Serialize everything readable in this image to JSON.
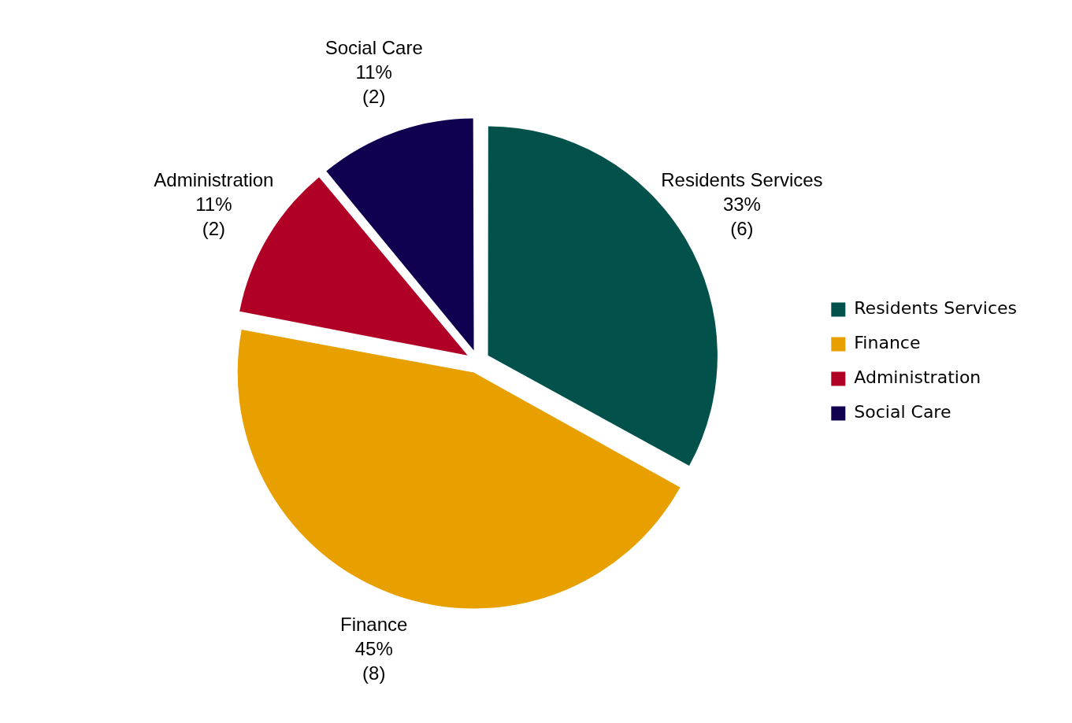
{
  "chart_data": {
    "type": "pie",
    "categories": [
      "Residents Services",
      "Finance",
      "Administration",
      "Social Care"
    ],
    "values": [
      33,
      45,
      11,
      11
    ],
    "value_labels": [
      "33%\n(6)",
      "45%\n(8)",
      "11%\n(2)",
      "11%\n(2)"
    ],
    "colors": [
      "#02524b",
      "#e8a000",
      "#b10026",
      "#10004f"
    ],
    "legend": "right"
  }
}
